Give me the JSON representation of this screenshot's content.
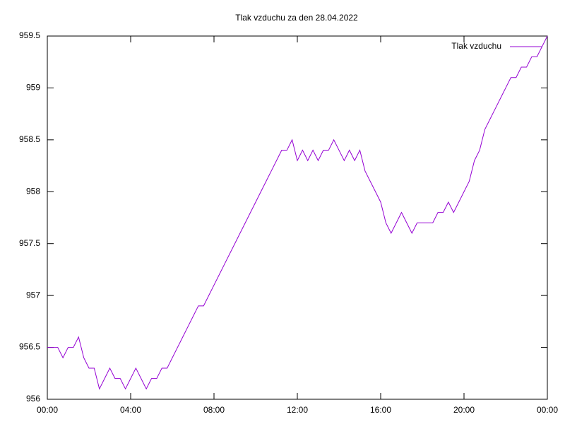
{
  "chart_data": {
    "type": "line",
    "title": "Tlak vzduchu za den 28.04.2022",
    "x": [
      0,
      0.25,
      0.5,
      0.75,
      1,
      1.25,
      1.5,
      1.75,
      2,
      2.25,
      2.5,
      2.75,
      3,
      3.25,
      3.5,
      3.75,
      4,
      4.25,
      4.5,
      4.75,
      5,
      5.25,
      5.5,
      5.75,
      6,
      6.25,
      6.5,
      6.75,
      7,
      7.25,
      7.5,
      7.75,
      8,
      8.25,
      8.5,
      8.75,
      9,
      9.25,
      9.5,
      9.75,
      10,
      10.25,
      10.5,
      10.75,
      11,
      11.25,
      11.5,
      11.75,
      12,
      12.25,
      12.5,
      12.75,
      13,
      13.25,
      13.5,
      13.75,
      14,
      14.25,
      14.5,
      14.75,
      15,
      15.25,
      15.5,
      15.75,
      16,
      16.25,
      16.5,
      16.75,
      17,
      17.25,
      17.5,
      17.75,
      18,
      18.25,
      18.5,
      18.75,
      19,
      19.25,
      19.5,
      19.75,
      20,
      20.25,
      20.5,
      20.75,
      21,
      21.25,
      21.5,
      21.75,
      22,
      22.25,
      22.5,
      22.75,
      23,
      23.25,
      23.5,
      23.75,
      24
    ],
    "series": [
      {
        "name": "Tlak vzduchu",
        "color": "#9400d3",
        "values": [
          956.5,
          956.5,
          956.5,
          956.4,
          956.5,
          956.5,
          956.6,
          956.4,
          956.3,
          956.3,
          956.1,
          956.2,
          956.3,
          956.2,
          956.2,
          956.1,
          956.2,
          956.3,
          956.2,
          956.1,
          956.2,
          956.2,
          956.3,
          956.3,
          956.4,
          956.5,
          956.6,
          956.7,
          956.8,
          956.9,
          956.9,
          957.0,
          957.1,
          957.2,
          957.3,
          957.4,
          957.5,
          957.6,
          957.7,
          957.8,
          957.9,
          958.0,
          958.1,
          958.2,
          958.3,
          958.4,
          958.4,
          958.5,
          958.3,
          958.4,
          958.3,
          958.4,
          958.3,
          958.4,
          958.4,
          958.5,
          958.4,
          958.3,
          958.4,
          958.3,
          958.4,
          958.2,
          958.1,
          958.0,
          957.9,
          957.7,
          957.6,
          957.7,
          957.8,
          957.7,
          957.6,
          957.7,
          957.7,
          957.7,
          957.7,
          957.8,
          957.8,
          957.9,
          957.8,
          957.9,
          958.0,
          958.1,
          958.3,
          958.4,
          958.6,
          958.7,
          958.8,
          958.9,
          959.0,
          959.1,
          959.1,
          959.2,
          959.2,
          959.3,
          959.3,
          959.4,
          959.5
        ]
      }
    ],
    "xlim": [
      0,
      24
    ],
    "xticks": [
      {
        "value": 0,
        "label": "00:00"
      },
      {
        "value": 4,
        "label": "04:00"
      },
      {
        "value": 8,
        "label": "08:00"
      },
      {
        "value": 12,
        "label": "12:00"
      },
      {
        "value": 16,
        "label": "16:00"
      },
      {
        "value": 20,
        "label": "20:00"
      },
      {
        "value": 24,
        "label": "00:00"
      }
    ],
    "ylim": [
      956,
      959.5
    ],
    "yticks": [
      956,
      956.5,
      957,
      957.5,
      958,
      958.5,
      959,
      959.5
    ],
    "grid": false,
    "legend": "top-right"
  }
}
